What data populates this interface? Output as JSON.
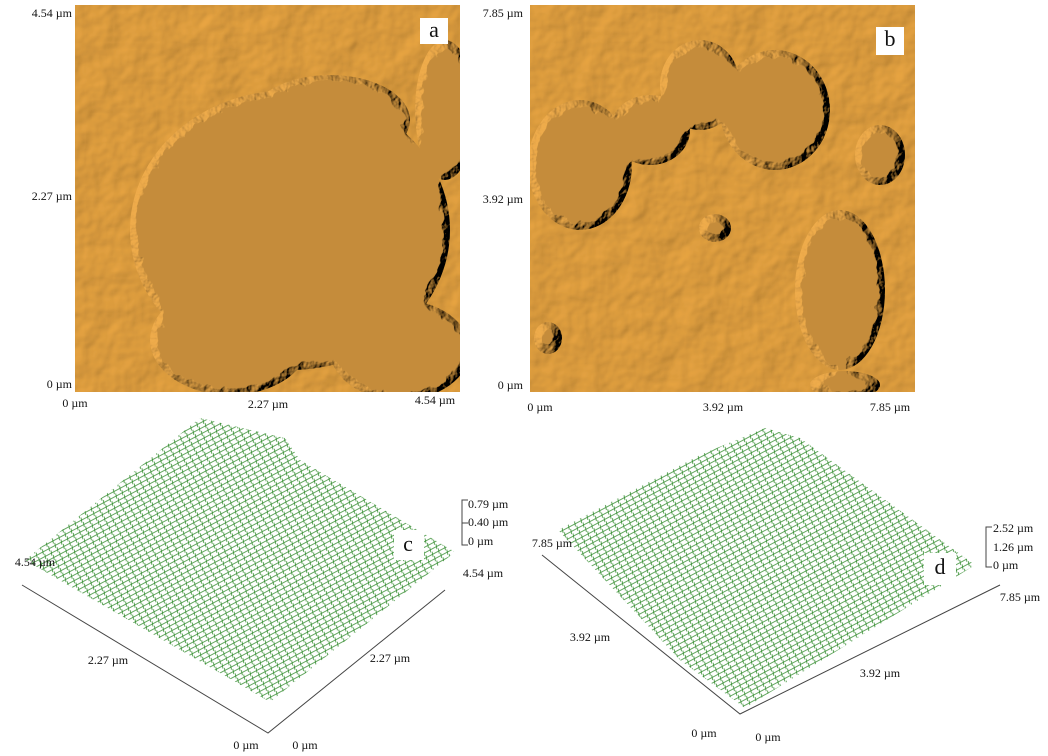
{
  "panels": [
    {
      "label": "a",
      "y_axis": [
        "4.54 µm",
        "2.27 µm",
        "0 µm"
      ],
      "x_axis": [
        "0 µm",
        "2.27 µm",
        "4.54 µm"
      ]
    },
    {
      "label": "b",
      "y_axis": [
        "7.85 µm",
        "3.92 µm",
        "0 µm"
      ],
      "x_axis": [
        "0 µm",
        "3.92 µm",
        "7.85 µm"
      ]
    },
    {
      "label": "c",
      "z_axis": [
        "0.79 µm",
        "0.40 µm",
        "0 µm"
      ],
      "left_axis": [
        "4.54 µm",
        "2.27 µm",
        "0 µm"
      ],
      "right_axis": [
        "4.54 µm",
        "2.27 µm",
        "0 µm"
      ]
    },
    {
      "label": "d",
      "z_axis": [
        "2.52 µm",
        "1.26 µm",
        "0 µm"
      ],
      "left_axis": [
        "7.85 µm",
        "3.92 µm",
        "0 µm"
      ],
      "right_axis": [
        "7.85 µm",
        "3.92 µm",
        "0 µm"
      ]
    }
  ]
}
